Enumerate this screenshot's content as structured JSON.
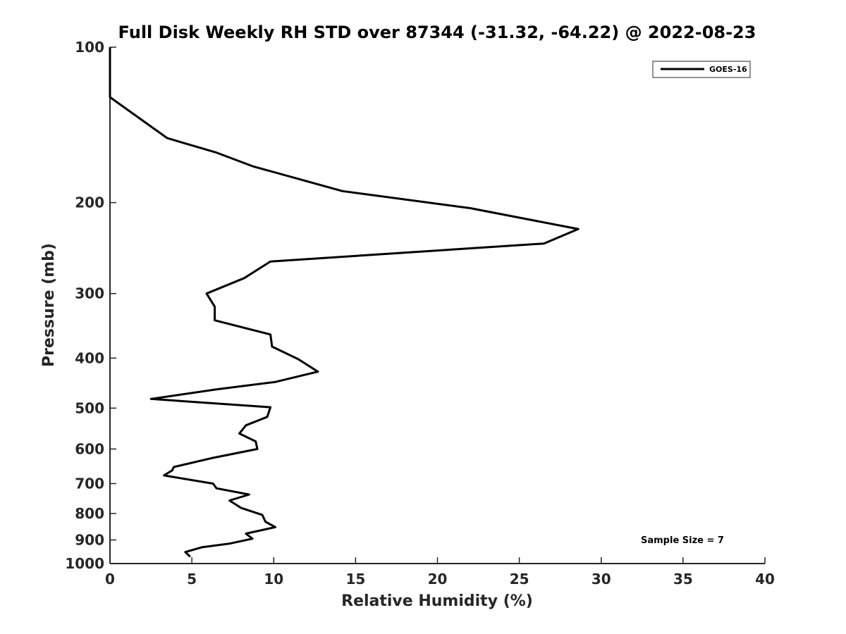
{
  "chart_data": {
    "type": "line",
    "title": "Full Disk Weekly RH STD over 87344 (-31.32, -64.22) @ 2022-08-23",
    "xlabel": "Relative Humidity (%)",
    "ylabel": "Pressure (mb)",
    "xlim": [
      0,
      40
    ],
    "ylim": [
      100,
      1000
    ],
    "y_scale": "log",
    "y_inverted": true,
    "xticks": [
      0,
      5,
      10,
      15,
      20,
      25,
      30,
      35,
      40
    ],
    "yticks": [
      100,
      200,
      300,
      400,
      500,
      600,
      700,
      800,
      900,
      1000
    ],
    "grid": false,
    "legend_position": "top-right",
    "annotation": "Sample Size = 7",
    "series": [
      {
        "name": "GOES-16",
        "color": "#000000",
        "points": [
          [
            0,
            100
          ],
          [
            0,
            125
          ],
          [
            3.5,
            150
          ],
          [
            6.5,
            160
          ],
          [
            8.7,
            170
          ],
          [
            14.2,
            190
          ],
          [
            22,
            205
          ],
          [
            28.6,
            225
          ],
          [
            26.5,
            240
          ],
          [
            9.8,
            260
          ],
          [
            8.2,
            280
          ],
          [
            5.9,
            300
          ],
          [
            6.4,
            318
          ],
          [
            6.4,
            338
          ],
          [
            9.8,
            360
          ],
          [
            9.9,
            380
          ],
          [
            11.5,
            402
          ],
          [
            12.7,
            425
          ],
          [
            10.1,
            445
          ],
          [
            6.5,
            460
          ],
          [
            2.5,
            480
          ],
          [
            9.8,
            498
          ],
          [
            9.6,
            520
          ],
          [
            8.3,
            540
          ],
          [
            7.9,
            560
          ],
          [
            8.9,
            580
          ],
          [
            9.0,
            600
          ],
          [
            6.2,
            625
          ],
          [
            3.9,
            650
          ],
          [
            3.8,
            660
          ],
          [
            3.3,
            675
          ],
          [
            6.3,
            700
          ],
          [
            6.5,
            715
          ],
          [
            8.5,
            735
          ],
          [
            7.3,
            755
          ],
          [
            8.0,
            780
          ],
          [
            9.3,
            805
          ],
          [
            9.5,
            830
          ],
          [
            10.1,
            850
          ],
          [
            8.3,
            875
          ],
          [
            8.7,
            895
          ],
          [
            7.3,
            915
          ],
          [
            5.6,
            930
          ],
          [
            4.6,
            950
          ],
          [
            4.9,
            970
          ]
        ]
      }
    ]
  }
}
